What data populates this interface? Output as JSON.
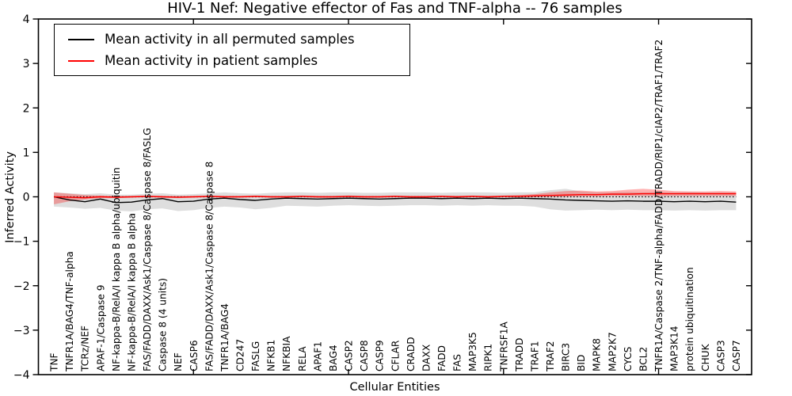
{
  "chart_data": {
    "type": "line",
    "title": "HIV-1 Nef: Negative effector of Fas and TNF-alpha -- 76 samples",
    "xlabel": "Cellular Entities",
    "ylabel": "Inferred Activity",
    "xlim": [
      0,
      46
    ],
    "ylim": [
      -4,
      4
    ],
    "yticks": [
      4,
      3,
      2,
      1,
      0,
      -1,
      -2,
      -3,
      -4
    ],
    "ytick_labels": [
      "4",
      "3",
      "2",
      "1",
      "0",
      "−1",
      "−2",
      "−3",
      "−4"
    ],
    "xticks": [
      10,
      20,
      30,
      40
    ],
    "grid": false,
    "legend": {
      "position": "upper left",
      "entries": [
        {
          "label": "Mean activity in all permuted samples",
          "color": "#000000"
        },
        {
          "label": "Mean activity in patient samples",
          "color": "#ff0000"
        }
      ]
    },
    "zero_line": {
      "y": 0,
      "style": "dotted",
      "color": "#000000"
    },
    "categories": [
      "TNF",
      "TNFR1A/BAG4/TNF-alpha",
      "TCRz/NEF",
      "APAF-1/Caspase 9",
      "NF-kappa-B/RelA/I kappa B alpha/ubiquitin",
      "NF-kappa-B/RelA/I kappa B alpha",
      "FAS/FADD/DAXX/Ask1/Caspase 8/Caspase 8/FASLG",
      "Caspase 8 (4 units)",
      "NEF",
      "CASP6",
      "FAS/FADD/DAXX/Ask1/Caspase 8/Caspase 8",
      "TNFR1A/BAG4",
      "CD247",
      "FASLG",
      "NFKB1",
      "NFKBIA",
      "RELA",
      "APAF1",
      "BAG4",
      "CASP2",
      "CASP8",
      "CASP9",
      "CFLAR",
      "CRADD",
      "DAXX",
      "FADD",
      "FAS",
      "MAP3K5",
      "RIPK1",
      "TNFRSF1A",
      "TRADD",
      "TRAF1",
      "TRAF2",
      "BIRC3",
      "BID",
      "MAPK8",
      "MAP2K7",
      "CYCS",
      "BCL2",
      "TNFR1A/Caspase 2/TNF-alpha/FADD/TRADD/RIP1/cIAP2/TRAF1/TRAF2",
      "MAP3K14",
      "protein ubiquitination",
      "CHUK",
      "CASP3",
      "CASP7"
    ],
    "series": [
      {
        "name": "Mean activity in all permuted samples",
        "color": "#000000",
        "band_color": "rgba(0,0,0,0.13)",
        "values": [
          0.0,
          -0.07,
          -0.11,
          -0.05,
          -0.13,
          -0.12,
          -0.07,
          -0.04,
          -0.11,
          -0.1,
          -0.05,
          -0.03,
          -0.06,
          -0.08,
          -0.05,
          -0.03,
          -0.04,
          -0.05,
          -0.04,
          -0.03,
          -0.04,
          -0.05,
          -0.04,
          -0.03,
          -0.03,
          -0.04,
          -0.03,
          -0.04,
          -0.03,
          -0.04,
          -0.03,
          -0.04,
          -0.05,
          -0.07,
          -0.08,
          -0.09,
          -0.1,
          -0.09,
          -0.1,
          -0.1,
          -0.11,
          -0.1,
          -0.11,
          -0.1,
          -0.12
        ],
        "band_high": [
          0.1,
          0.08,
          0.06,
          0.08,
          0.05,
          0.05,
          0.07,
          0.08,
          0.05,
          0.06,
          0.08,
          0.1,
          0.08,
          0.07,
          0.09,
          0.1,
          0.1,
          0.09,
          0.1,
          0.1,
          0.09,
          0.09,
          0.1,
          0.1,
          0.1,
          0.09,
          0.1,
          0.1,
          0.1,
          0.09,
          0.1,
          0.1,
          0.15,
          0.18,
          0.12,
          0.1,
          0.1,
          0.11,
          0.1,
          0.11,
          0.1,
          0.11,
          0.1,
          0.1,
          0.1
        ],
        "band_low": [
          -0.22,
          -0.24,
          -0.27,
          -0.25,
          -0.31,
          -0.33,
          -0.28,
          -0.26,
          -0.32,
          -0.3,
          -0.25,
          -0.22,
          -0.24,
          -0.28,
          -0.25,
          -0.2,
          -0.21,
          -0.22,
          -0.2,
          -0.19,
          -0.2,
          -0.21,
          -0.2,
          -0.19,
          -0.19,
          -0.2,
          -0.19,
          -0.2,
          -0.19,
          -0.2,
          -0.2,
          -0.22,
          -0.28,
          -0.31,
          -0.3,
          -0.29,
          -0.3,
          -0.29,
          -0.3,
          -0.3,
          -0.31,
          -0.3,
          -0.31,
          -0.3,
          -0.3
        ]
      },
      {
        "name": "Mean activity in patient samples",
        "color": "#ff0000",
        "band_color": "rgba(255,0,0,0.30)",
        "values": [
          0.0,
          -0.01,
          -0.02,
          0.0,
          -0.01,
          0.0,
          0.01,
          0.0,
          -0.01,
          0.0,
          0.01,
          0.0,
          0.0,
          0.01,
          0.0,
          0.0,
          0.01,
          0.0,
          0.0,
          0.01,
          0.0,
          0.0,
          0.01,
          0.0,
          0.0,
          0.01,
          0.0,
          0.01,
          0.0,
          0.01,
          0.01,
          0.02,
          0.03,
          0.04,
          0.05,
          0.05,
          0.06,
          0.06,
          0.07,
          0.07,
          0.07,
          0.07,
          0.07,
          0.07,
          0.07
        ],
        "band_high": [
          0.1,
          0.07,
          0.04,
          0.03,
          0.02,
          0.02,
          0.03,
          0.02,
          0.02,
          0.02,
          0.03,
          0.02,
          0.02,
          0.03,
          0.02,
          0.02,
          0.03,
          0.02,
          0.02,
          0.03,
          0.02,
          0.02,
          0.03,
          0.02,
          0.02,
          0.03,
          0.02,
          0.03,
          0.02,
          0.03,
          0.04,
          0.06,
          0.1,
          0.13,
          0.14,
          0.12,
          0.13,
          0.16,
          0.18,
          0.16,
          0.13,
          0.12,
          0.12,
          0.13,
          0.12
        ],
        "band_low": [
          -0.17,
          -0.1,
          -0.06,
          -0.03,
          -0.03,
          -0.02,
          -0.01,
          -0.02,
          -0.03,
          -0.02,
          -0.01,
          -0.02,
          -0.02,
          -0.01,
          -0.02,
          -0.02,
          -0.01,
          -0.02,
          -0.02,
          -0.01,
          -0.02,
          -0.02,
          -0.01,
          -0.02,
          -0.02,
          -0.01,
          -0.02,
          -0.01,
          -0.02,
          -0.01,
          -0.01,
          0.0,
          0.0,
          0.0,
          0.01,
          0.01,
          0.02,
          0.02,
          0.02,
          0.02,
          0.02,
          0.02,
          0.02,
          0.02,
          0.02
        ]
      }
    ]
  }
}
